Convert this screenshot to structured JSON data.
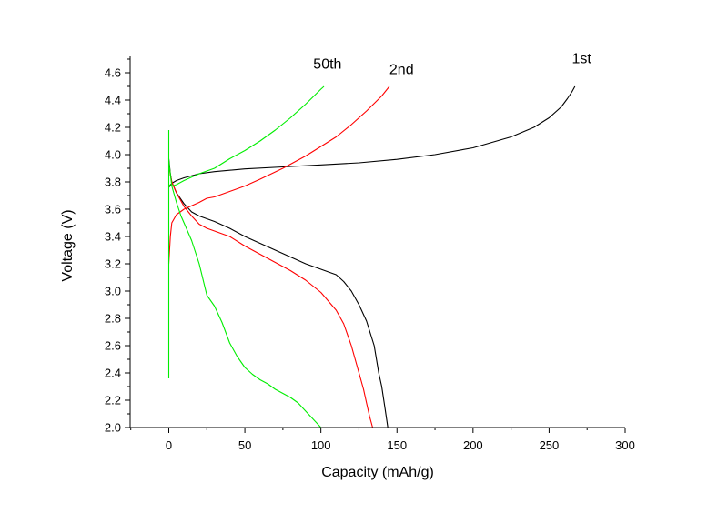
{
  "chart_data": {
    "type": "line",
    "title": "",
    "xlabel": "Capacity (mAh/g)",
    "ylabel": "Voltage (V)",
    "xlim": [
      -25,
      300
    ],
    "ylim": [
      2.0,
      4.7
    ],
    "x_ticks": [
      0,
      50,
      100,
      150,
      200,
      250,
      300
    ],
    "y_ticks": [
      2.0,
      2.2,
      2.4,
      2.6,
      2.8,
      3.0,
      3.2,
      3.4,
      3.6,
      3.8,
      4.0,
      4.2,
      4.4,
      4.6
    ],
    "grid": false,
    "annotations": [
      {
        "text": "1st",
        "x": 265,
        "y": 4.67,
        "series": "1st"
      },
      {
        "text": "2nd",
        "x": 145,
        "y": 4.59,
        "series": "2nd"
      },
      {
        "text": "50th",
        "x": 95,
        "y": 4.63,
        "series": "50th"
      }
    ],
    "series": [
      {
        "name": "1st",
        "color": "#000000",
        "segments": [
          {
            "part": "charge",
            "x": [
              0,
              2,
              5,
              10,
              20,
              30,
              50,
              75,
              100,
              125,
              150,
              175,
              200,
              225,
              240,
              250,
              258,
              262,
              265,
              267
            ],
            "y": [
              3.76,
              3.79,
              3.81,
              3.83,
              3.86,
              3.875,
              3.895,
              3.91,
              3.925,
              3.94,
              3.965,
              4.0,
              4.05,
              4.13,
              4.2,
              4.27,
              4.35,
              4.41,
              4.46,
              4.5
            ]
          },
          {
            "part": "discharge",
            "x": [
              0,
              1,
              2,
              5,
              10,
              15,
              20,
              25,
              30,
              40,
              50,
              60,
              70,
              80,
              90,
              100,
              105,
              110,
              115,
              120,
              125,
              130,
              135,
              138,
              140,
              142,
              144
            ],
            "y": [
              3.97,
              3.86,
              3.8,
              3.72,
              3.64,
              3.58,
              3.55,
              3.53,
              3.51,
              3.46,
              3.4,
              3.35,
              3.3,
              3.25,
              3.2,
              3.16,
              3.14,
              3.12,
              3.07,
              3.0,
              2.9,
              2.78,
              2.6,
              2.4,
              2.3,
              2.15,
              2.0
            ]
          }
        ]
      },
      {
        "name": "2nd",
        "color": "#ff0000",
        "segments": [
          {
            "part": "charge",
            "x": [
              0,
              1,
              2,
              5,
              10,
              20,
              25,
              30,
              40,
              50,
              60,
              75,
              90,
              100,
              110,
              120,
              130,
              140,
              145
            ],
            "y": [
              3.2,
              3.4,
              3.5,
              3.56,
              3.6,
              3.65,
              3.68,
              3.69,
              3.73,
              3.77,
              3.82,
              3.9,
              3.99,
              4.06,
              4.13,
              4.22,
              4.32,
              4.43,
              4.5
            ]
          },
          {
            "part": "discharge",
            "x": [
              0,
              1,
              2,
              5,
              10,
              15,
              20,
              25,
              30,
              35,
              40,
              50,
              60,
              70,
              80,
              90,
              100,
              110,
              115,
              120,
              125,
              128,
              130,
              132,
              134
            ],
            "y": [
              3.93,
              3.85,
              3.8,
              3.72,
              3.62,
              3.55,
              3.49,
              3.46,
              3.44,
              3.42,
              3.4,
              3.33,
              3.27,
              3.21,
              3.15,
              3.08,
              2.99,
              2.86,
              2.76,
              2.6,
              2.4,
              2.28,
              2.18,
              2.08,
              2.0
            ]
          }
        ]
      },
      {
        "name": "50th",
        "color": "#00ee00",
        "segments": [
          {
            "part": "voltage-jump",
            "x": [
              0,
              0
            ],
            "y": [
              2.36,
              4.18
            ]
          },
          {
            "part": "charge",
            "x": [
              0,
              2,
              5,
              10,
              20,
              30,
              40,
              50,
              60,
              70,
              80,
              90,
              100,
              102
            ],
            "y": [
              3.78,
              3.77,
              3.78,
              3.81,
              3.86,
              3.9,
              3.97,
              4.03,
              4.1,
              4.18,
              4.27,
              4.37,
              4.48,
              4.5
            ]
          },
          {
            "part": "discharge",
            "x": [
              0,
              2,
              5,
              8,
              10,
              15,
              20,
              25,
              30,
              35,
              40,
              45,
              50,
              55,
              60,
              65,
              70,
              75,
              80,
              85,
              90,
              95,
              100
            ],
            "y": [
              3.95,
              3.77,
              3.65,
              3.55,
              3.5,
              3.37,
              3.2,
              2.97,
              2.89,
              2.77,
              2.62,
              2.52,
              2.44,
              2.39,
              2.35,
              2.32,
              2.28,
              2.25,
              2.22,
              2.18,
              2.12,
              2.06,
              2.0
            ]
          }
        ]
      }
    ]
  }
}
